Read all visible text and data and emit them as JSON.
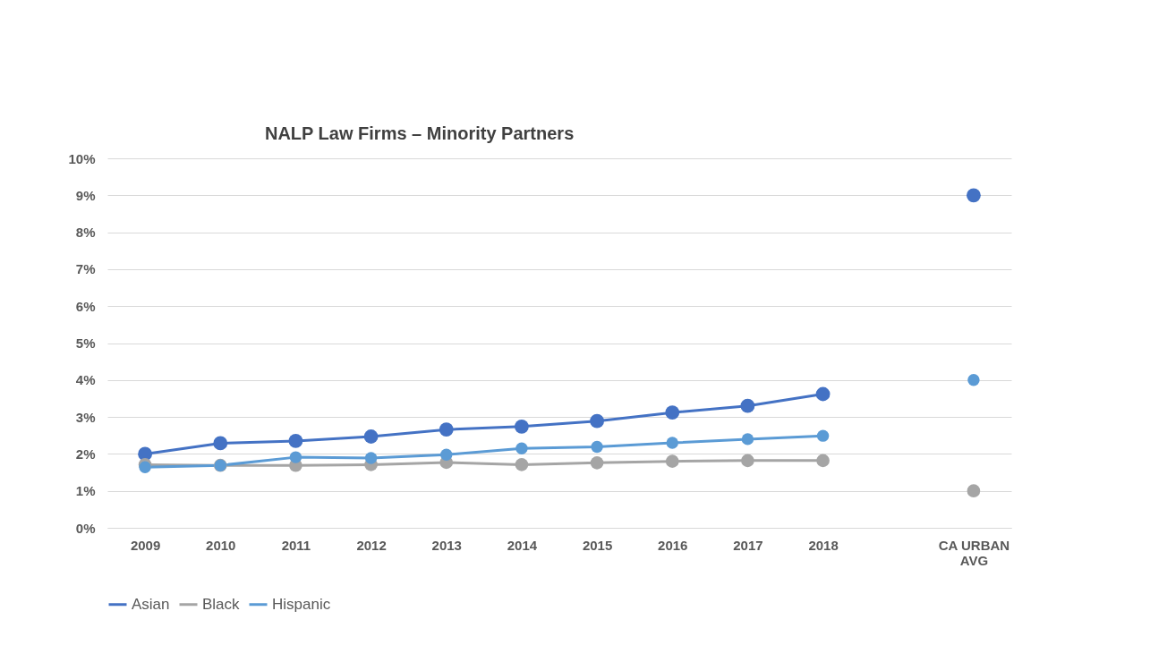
{
  "chart_data": {
    "type": "line",
    "title": "NALP Law Firms – Minority Partners",
    "categories": [
      "2009",
      "2010",
      "2011",
      "2012",
      "2013",
      "2014",
      "2015",
      "2016",
      "2017",
      "2018",
      null,
      "CA URBAN AVG"
    ],
    "series": [
      {
        "name": "Asian",
        "color": "#4472c4",
        "values": [
          2.0,
          2.29,
          2.35,
          2.47,
          2.66,
          2.74,
          2.89,
          3.12,
          3.3,
          3.62,
          null,
          9
        ]
      },
      {
        "name": "Black",
        "color": "#a5a5a5",
        "values": [
          1.71,
          1.69,
          1.69,
          1.71,
          1.77,
          1.71,
          1.76,
          1.8,
          1.82,
          1.82,
          null,
          1
        ]
      },
      {
        "name": "Hispanic",
        "color": "#5b9bd5",
        "values": [
          1.64,
          1.69,
          1.91,
          1.89,
          1.98,
          2.15,
          2.19,
          2.3,
          2.4,
          2.49,
          null,
          4
        ]
      }
    ],
    "ylim": [
      0,
      10
    ],
    "yticks": [
      {
        "value": 0,
        "label": "0%"
      },
      {
        "value": 1,
        "label": "1%"
      },
      {
        "value": 2,
        "label": "2%"
      },
      {
        "value": 3,
        "label": "3%"
      },
      {
        "value": 4,
        "label": "4%"
      },
      {
        "value": 5,
        "label": "5%"
      },
      {
        "value": 6,
        "label": "6%"
      },
      {
        "value": 7,
        "label": "7%"
      },
      {
        "value": 8,
        "label": "8%"
      },
      {
        "value": 9,
        "label": "9%"
      },
      {
        "value": 10,
        "label": "10%"
      }
    ],
    "grid": "y",
    "legend": "bottom",
    "marker": "circle",
    "line_style": "solid"
  }
}
